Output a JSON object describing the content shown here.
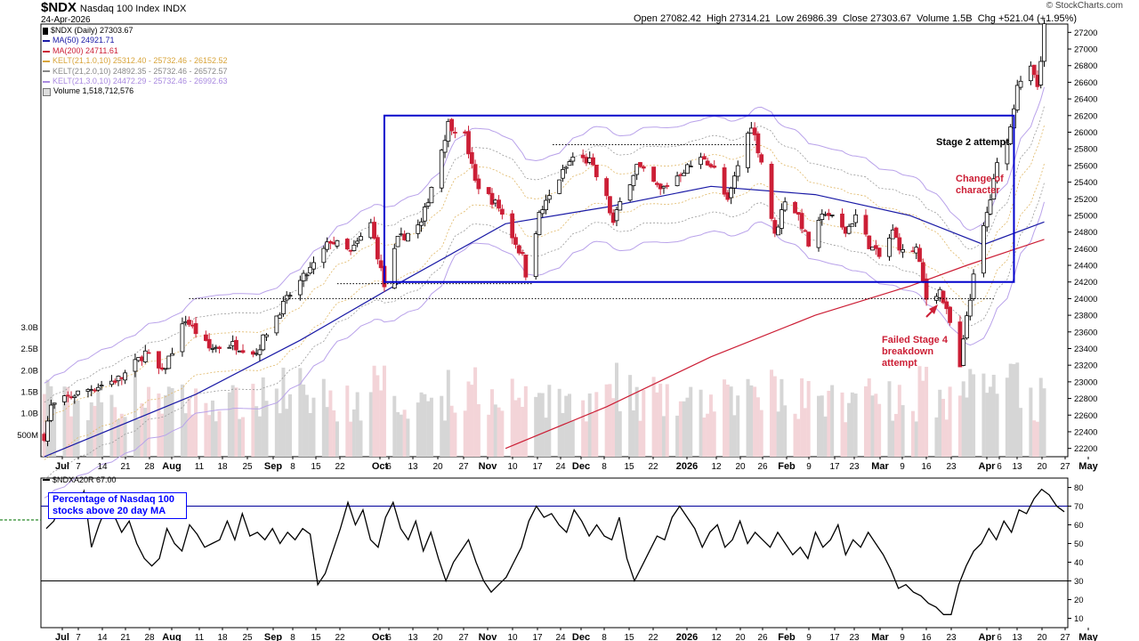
{
  "header": {
    "ticker": "$NDX",
    "name": "Nasdaq 100 Index",
    "exchange": "INDX",
    "date": "24-Apr-2026",
    "open_label": "Open",
    "open": "27082.42",
    "high_label": "High",
    "high": "27314.21",
    "low_label": "Low",
    "low": "26986.39",
    "close_label": "Close",
    "close": "27303.67",
    "volume_label": "Volume",
    "volume": "1.5B",
    "chg_label": "Chg",
    "chg": "+521.04 (+1.95%)",
    "source": "© StockCharts.com"
  },
  "legend": [
    {
      "text": "$NDX (Daily) 27303.67",
      "color": "#000000",
      "kind": "candle"
    },
    {
      "text": "MA(50) 24921.71",
      "color": "#1a1aa6",
      "kind": "line"
    },
    {
      "text": "MA(200) 24711.61",
      "color": "#cc1f36",
      "kind": "line"
    },
    {
      "text": "KELT(21,1.0,10) 25312.40 - 25732.46 - 26152.52",
      "color": "#d8a43a",
      "kind": "line"
    },
    {
      "text": "KELT(21,2.0,10) 24892.35 - 25732.46 - 26572.57",
      "color": "#888888",
      "kind": "line"
    },
    {
      "text": "KELT(21,3.0,10) 24472.29 - 25732.46 - 26992.63",
      "color": "#a98ae0",
      "kind": "line"
    },
    {
      "text": "Volume 1,518,712,576",
      "color": "#cccccc",
      "kind": "box"
    }
  ],
  "indicator": {
    "label": "$NDXA20R 67.00",
    "color": "#000000"
  },
  "annotations": {
    "stage2": "Stage 2 attempt",
    "change": "Change of character",
    "failed": "Failed Stage 4 breakdown attempt",
    "pct_box": "Percentage of Nasdaq 100 stocks above 20 day MA"
  },
  "colors": {
    "up": "#000000",
    "down": "#cc1f36",
    "box": "#0000cc",
    "ma50": "#1a1aa6",
    "ma200": "#cc1f36"
  },
  "chart_data": [
    {
      "type": "candlestick",
      "title": "$NDX Nasdaq 100 Index",
      "ylim": [
        22100,
        27300
      ],
      "y_ticks": [
        22200,
        22400,
        22600,
        22800,
        23000,
        23200,
        23400,
        23600,
        23800,
        24000,
        24200,
        24400,
        24600,
        24800,
        25000,
        25200,
        25400,
        25600,
        25800,
        26000,
        26200,
        26400,
        26600,
        26800,
        27000,
        27200
      ],
      "volume_ticks": [
        "500M",
        "1.0B",
        "1.5B",
        "2.0B",
        "2.5B",
        "3.0B"
      ],
      "x_ticks": [
        "Jul",
        "7",
        "14",
        "21",
        "28",
        "Aug",
        "11",
        "18",
        "25",
        "Sep",
        "8",
        "15",
        "22",
        "Oct",
        "6",
        "13",
        "20",
        "27",
        "Nov",
        "10",
        "17",
        "24",
        "Dec",
        "8",
        "15",
        "22",
        "2026",
        "12",
        "20",
        "26",
        "Feb",
        "9",
        "17",
        "23",
        "Mar",
        "9",
        "16",
        "23",
        "Apr",
        "6",
        "13",
        "20",
        "27",
        "May"
      ],
      "close_path": [
        [
          "2025-07-01",
          22350
        ],
        [
          "2025-07-03",
          22700
        ],
        [
          "2025-07-10",
          22850
        ],
        [
          "2025-07-17",
          22950
        ],
        [
          "2025-07-24",
          23050
        ],
        [
          "2025-07-31",
          23350
        ],
        [
          "2025-08-05",
          23100
        ],
        [
          "2025-08-12",
          23750
        ],
        [
          "2025-08-19",
          23400
        ],
        [
          "2025-08-26",
          23450
        ],
        [
          "2025-09-02",
          23350
        ],
        [
          "2025-09-05",
          23600
        ],
        [
          "2025-09-12",
          24050
        ],
        [
          "2025-09-19",
          24400
        ],
        [
          "2025-09-24",
          24700
        ],
        [
          "2025-09-30",
          24550
        ],
        [
          "2025-10-06",
          24900
        ],
        [
          "2025-10-10",
          24150
        ],
        [
          "2025-10-14",
          24700
        ],
        [
          "2025-10-21",
          24900
        ],
        [
          "2025-10-24",
          25350
        ],
        [
          "2025-10-29",
          26100
        ],
        [
          "2025-11-03",
          25950
        ],
        [
          "2025-11-06",
          25400
        ],
        [
          "2025-11-13",
          25100
        ],
        [
          "2025-11-20",
          24500
        ],
        [
          "2025-11-21",
          24300
        ],
        [
          "2025-11-25",
          25000
        ],
        [
          "2025-12-01",
          25450
        ],
        [
          "2025-12-05",
          25700
        ],
        [
          "2025-12-10",
          25650
        ],
        [
          "2025-12-15",
          25200
        ],
        [
          "2025-12-17",
          24900
        ],
        [
          "2025-12-19",
          25150
        ],
        [
          "2025-12-24",
          25600
        ],
        [
          "2025-12-31",
          25300
        ],
        [
          "2026-01-07",
          25550
        ],
        [
          "2026-01-13",
          25700
        ],
        [
          "2026-01-16",
          25550
        ],
        [
          "2026-01-20",
          25150
        ],
        [
          "2026-01-23",
          25600
        ],
        [
          "2026-01-27",
          26100
        ],
        [
          "2026-01-30",
          25650
        ],
        [
          "2026-02-03",
          24750
        ],
        [
          "2026-02-06",
          25200
        ],
        [
          "2026-02-10",
          25000
        ],
        [
          "2026-02-13",
          24650
        ],
        [
          "2026-02-18",
          25050
        ],
        [
          "2026-02-24",
          24800
        ],
        [
          "2026-02-27",
          25000
        ],
        [
          "2026-03-03",
          24650
        ],
        [
          "2026-03-06",
          24500
        ],
        [
          "2026-03-10",
          24800
        ],
        [
          "2026-03-13",
          24550
        ],
        [
          "2026-03-17",
          24600
        ],
        [
          "2026-03-20",
          24000
        ],
        [
          "2026-03-24",
          24100
        ],
        [
          "2026-03-27",
          23700
        ],
        [
          "2026-03-30",
          23150
        ],
        [
          "2026-04-01",
          23800
        ],
        [
          "2026-04-03",
          24250
        ],
        [
          "2026-04-06",
          24850
        ],
        [
          "2026-04-08",
          25200
        ],
        [
          "2026-04-10",
          25600
        ],
        [
          "2026-04-14",
          26050
        ],
        [
          "2026-04-16",
          26600
        ],
        [
          "2026-04-20",
          26750
        ],
        [
          "2026-04-22",
          26550
        ],
        [
          "2026-04-23",
          26800
        ],
        [
          "2026-04-24",
          27303.67
        ]
      ],
      "ma50": [
        [
          "2025-07-01",
          22100
        ],
        [
          "2025-08-15",
          22850
        ],
        [
          "2025-09-15",
          23500
        ],
        [
          "2025-10-15",
          24200
        ],
        [
          "2025-11-15",
          24900
        ],
        [
          "2025-12-15",
          25100
        ],
        [
          "2026-01-15",
          25350
        ],
        [
          "2026-02-15",
          25250
        ],
        [
          "2026-03-15",
          25000
        ],
        [
          "2026-04-06",
          24650
        ],
        [
          "2026-04-24",
          24921.71
        ]
      ],
      "ma200": [
        [
          "2025-11-15",
          22200
        ],
        [
          "2025-12-15",
          22700
        ],
        [
          "2026-01-15",
          23300
        ],
        [
          "2026-02-15",
          23800
        ],
        [
          "2026-03-15",
          24150
        ],
        [
          "2026-04-01",
          24400
        ],
        [
          "2026-04-24",
          24711.61
        ]
      ],
      "box": {
        "x": [
          "2025-10-10",
          "2026-04-15"
        ],
        "y": [
          24200,
          26200
        ]
      },
      "ref_lines": [
        {
          "x": [
            "2025-11-29",
            "2026-01-29"
          ],
          "y": 25850
        },
        {
          "x": [
            "2025-09-26",
            "2025-11-23"
          ],
          "y": 24180
        },
        {
          "x": [
            "2025-08-13",
            "2026-04-09"
          ],
          "y": 24000
        }
      ]
    },
    {
      "type": "line",
      "title": "$NDXA20R",
      "ylim": [
        5,
        85
      ],
      "y_ticks": [
        10,
        20,
        30,
        40,
        50,
        60,
        70,
        80
      ],
      "hlines": [
        70,
        30
      ],
      "values": [
        58,
        62,
        72,
        65,
        68,
        78,
        48,
        60,
        70,
        65,
        56,
        62,
        50,
        42,
        38,
        42,
        58,
        50,
        46,
        60,
        55,
        48,
        50,
        52,
        62,
        52,
        66,
        54,
        56,
        52,
        58,
        50,
        56,
        52,
        58,
        55,
        28,
        34,
        46,
        58,
        72,
        60,
        68,
        52,
        48,
        64,
        72,
        58,
        52,
        62,
        46,
        56,
        42,
        30,
        40,
        46,
        52,
        40,
        30,
        24,
        28,
        32,
        40,
        48,
        62,
        70,
        64,
        66,
        60,
        56,
        68,
        62,
        54,
        60,
        54,
        52,
        64,
        42,
        30,
        38,
        46,
        54,
        52,
        64,
        70,
        64,
        58,
        48,
        56,
        60,
        48,
        52,
        62,
        50,
        56,
        52,
        48,
        56,
        50,
        44,
        48,
        42,
        56,
        48,
        52,
        60,
        44,
        52,
        48,
        56,
        50,
        44,
        36,
        26,
        28,
        24,
        22,
        18,
        16,
        12,
        12,
        28,
        38,
        46,
        50,
        58,
        52,
        62,
        56,
        68,
        66,
        74,
        79,
        76,
        70,
        67
      ]
    }
  ]
}
